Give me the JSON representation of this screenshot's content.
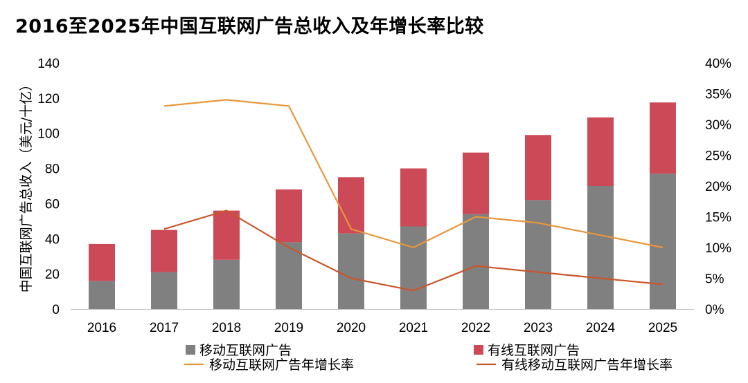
{
  "chart_data": {
    "type": "bar",
    "title": "2016至2025年中国互联网广告总收入及年增长率比较",
    "ylabel": "中国互联网广告总收入（美元/十亿）",
    "ylim": [
      0,
      140
    ],
    "yticks": [
      "0",
      "20",
      "40",
      "60",
      "80",
      "100",
      "120",
      "140"
    ],
    "y2lim": [
      0,
      40
    ],
    "y2ticks": [
      "0%",
      "5%",
      "10%",
      "15%",
      "20%",
      "25%",
      "30%",
      "35%",
      "40%"
    ],
    "categories": [
      "2016",
      "2017",
      "2018",
      "2019",
      "2020",
      "2021",
      "2022",
      "2023",
      "2024",
      "2025"
    ],
    "stacked_series": [
      {
        "name": "移动互联网广告",
        "color": "#808080",
        "values": [
          16,
          21,
          28,
          38,
          43,
          47,
          54,
          62,
          70,
          77
        ]
      },
      {
        "name": "有线互联网广告",
        "color": "#cc4a57",
        "values": [
          21,
          24,
          28,
          30,
          32,
          33,
          35,
          37,
          39,
          40.5
        ]
      }
    ],
    "line_series": [
      {
        "name": "移动互联网广告年增长率",
        "color": "#e8963a",
        "axis": "right",
        "values": [
          null,
          33,
          34,
          33,
          13,
          10,
          15,
          14,
          12,
          10
        ]
      },
      {
        "name": "有线移动互联网广告年增长率",
        "color": "#c9562a",
        "axis": "right",
        "values": [
          null,
          13,
          16,
          10,
          5,
          3,
          7,
          6,
          5,
          4
        ]
      }
    ]
  }
}
